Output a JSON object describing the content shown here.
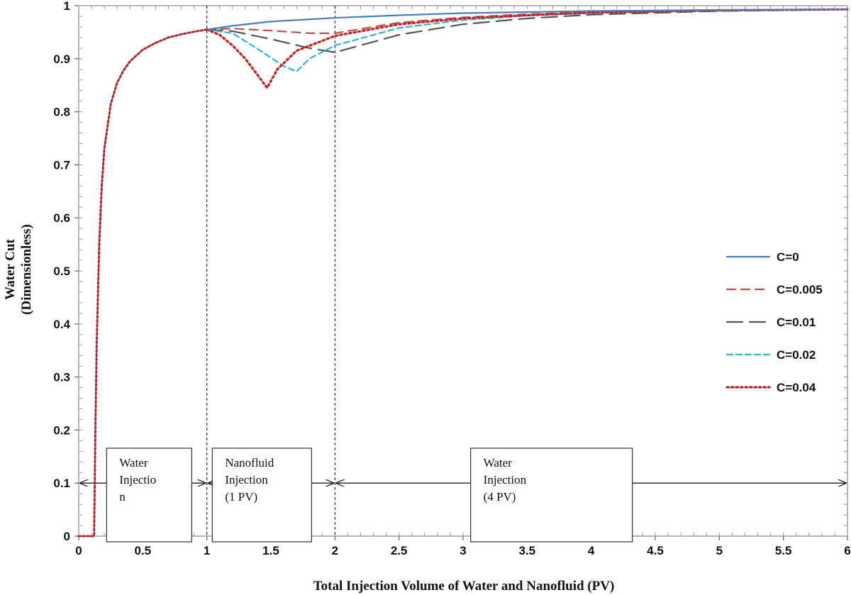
{
  "chart_data": {
    "type": "line",
    "title": "",
    "xlabel": "Total Injection Volume of Water and Nanofluid (PV)",
    "ylabel": "Water Cut",
    "ylabel_sub": "(Dimensionless)",
    "xlim": [
      0,
      6
    ],
    "ylim": [
      0,
      1
    ],
    "x_ticks": [
      "0",
      "0.5",
      "1",
      "1.5",
      "2",
      "2.5",
      "3",
      "3.5",
      "4",
      "4.5",
      "5",
      "5.5",
      "6"
    ],
    "y_ticks": [
      "0",
      "0.1",
      "0.2",
      "0.3",
      "0.4",
      "0.5",
      "0.6",
      "0.7",
      "0.8",
      "0.9",
      "1"
    ],
    "grid": false,
    "legend_position": "right",
    "series": [
      {
        "name": "C=0",
        "color": "#4a7ebb",
        "dash": "solid",
        "x": [
          0,
          0.12,
          0.13,
          0.14,
          0.16,
          0.18,
          0.2,
          0.25,
          0.3,
          0.35,
          0.4,
          0.5,
          0.6,
          0.7,
          0.8,
          0.9,
          1.0,
          1.2,
          1.5,
          2.0,
          2.5,
          3.0,
          3.5,
          4.0,
          5.0,
          6.0
        ],
        "y": [
          0,
          0,
          0.2,
          0.36,
          0.55,
          0.66,
          0.73,
          0.815,
          0.855,
          0.878,
          0.895,
          0.917,
          0.93,
          0.94,
          0.946,
          0.951,
          0.955,
          0.962,
          0.97,
          0.977,
          0.982,
          0.986,
          0.988,
          0.99,
          0.992,
          0.993
        ]
      },
      {
        "name": "C=0.005",
        "color": "#c0504d",
        "dash": "long-dash",
        "x": [
          1.0,
          1.2,
          1.5,
          1.8,
          2.0,
          2.5,
          3.0,
          3.5,
          4.0,
          5.0,
          6.0
        ],
        "y": [
          0.955,
          0.957,
          0.953,
          0.948,
          0.948,
          0.968,
          0.978,
          0.984,
          0.988,
          0.991,
          0.993
        ]
      },
      {
        "name": "C=0.01",
        "color": "#555555",
        "dash": "extra-long-dash",
        "x": [
          1.0,
          1.2,
          1.5,
          1.8,
          2.0,
          2.5,
          3.0,
          3.5,
          4.0,
          5.0,
          6.0
        ],
        "y": [
          0.955,
          0.952,
          0.937,
          0.92,
          0.912,
          0.945,
          0.965,
          0.976,
          0.983,
          0.99,
          0.993
        ]
      },
      {
        "name": "C=0.02",
        "color": "#31b6ce",
        "dash": "short-dash",
        "x": [
          1.0,
          1.2,
          1.4,
          1.6,
          1.7,
          1.8,
          2.0,
          2.5,
          3.0,
          3.5,
          4.0,
          5.0,
          6.0
        ],
        "y": [
          0.955,
          0.948,
          0.918,
          0.886,
          0.876,
          0.9,
          0.925,
          0.958,
          0.973,
          0.981,
          0.986,
          0.991,
          0.993
        ]
      },
      {
        "name": "C=0.04",
        "color": "#cc1e1e",
        "dash": "dotted",
        "x": [
          1.0,
          1.1,
          1.2,
          1.3,
          1.4,
          1.47,
          1.55,
          1.7,
          2.0,
          2.5,
          3.0,
          3.5,
          4.0,
          5.0,
          6.0
        ],
        "y": [
          0.955,
          0.945,
          0.925,
          0.9,
          0.868,
          0.845,
          0.88,
          0.915,
          0.943,
          0.965,
          0.976,
          0.982,
          0.987,
          0.991,
          0.993
        ]
      }
    ],
    "vlines": [
      1,
      2
    ],
    "annotations": [
      {
        "lines": [
          "Water",
          "Injectio",
          "n"
        ],
        "x_start": 0,
        "x_end": 1,
        "y": 0.1
      },
      {
        "lines": [
          "Nanofluid",
          "Injection",
          "(1 PV)"
        ],
        "x_start": 1,
        "x_end": 2,
        "y": 0.1
      },
      {
        "lines": [
          "Water",
          "Injection",
          "(4 PV)"
        ],
        "x_start": 2,
        "x_end": 6,
        "y": 0.1
      }
    ]
  }
}
